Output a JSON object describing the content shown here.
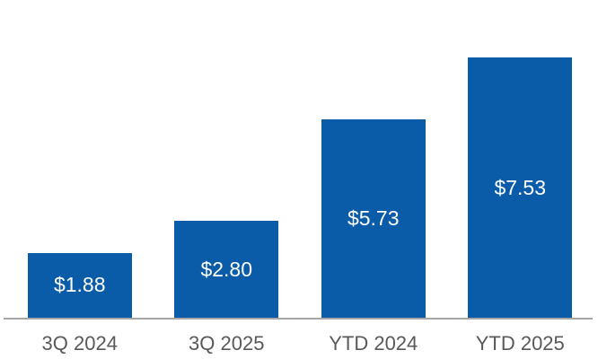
{
  "chart_data": {
    "type": "bar",
    "categories": [
      "3Q 2024",
      "3Q 2025",
      "YTD 2024",
      "YTD 2025"
    ],
    "values": [
      1.88,
      2.8,
      5.73,
      7.53
    ],
    "bar_labels": [
      "$1.88",
      "$2.80",
      "$5.73",
      "$7.53"
    ],
    "title": "",
    "xlabel": "",
    "ylabel": "",
    "ylim": [
      0,
      8
    ],
    "grid": false,
    "legend": false,
    "layout": {
      "value_label_position": "inside-center",
      "x_axis_line": true,
      "y_axis_visible": false
    },
    "colors": {
      "bar": "#0a5ca8",
      "bar_label": "#ffffff",
      "axis_line": "#a6a6a6",
      "tick_label": "#595959",
      "background": "#ffffff"
    }
  }
}
